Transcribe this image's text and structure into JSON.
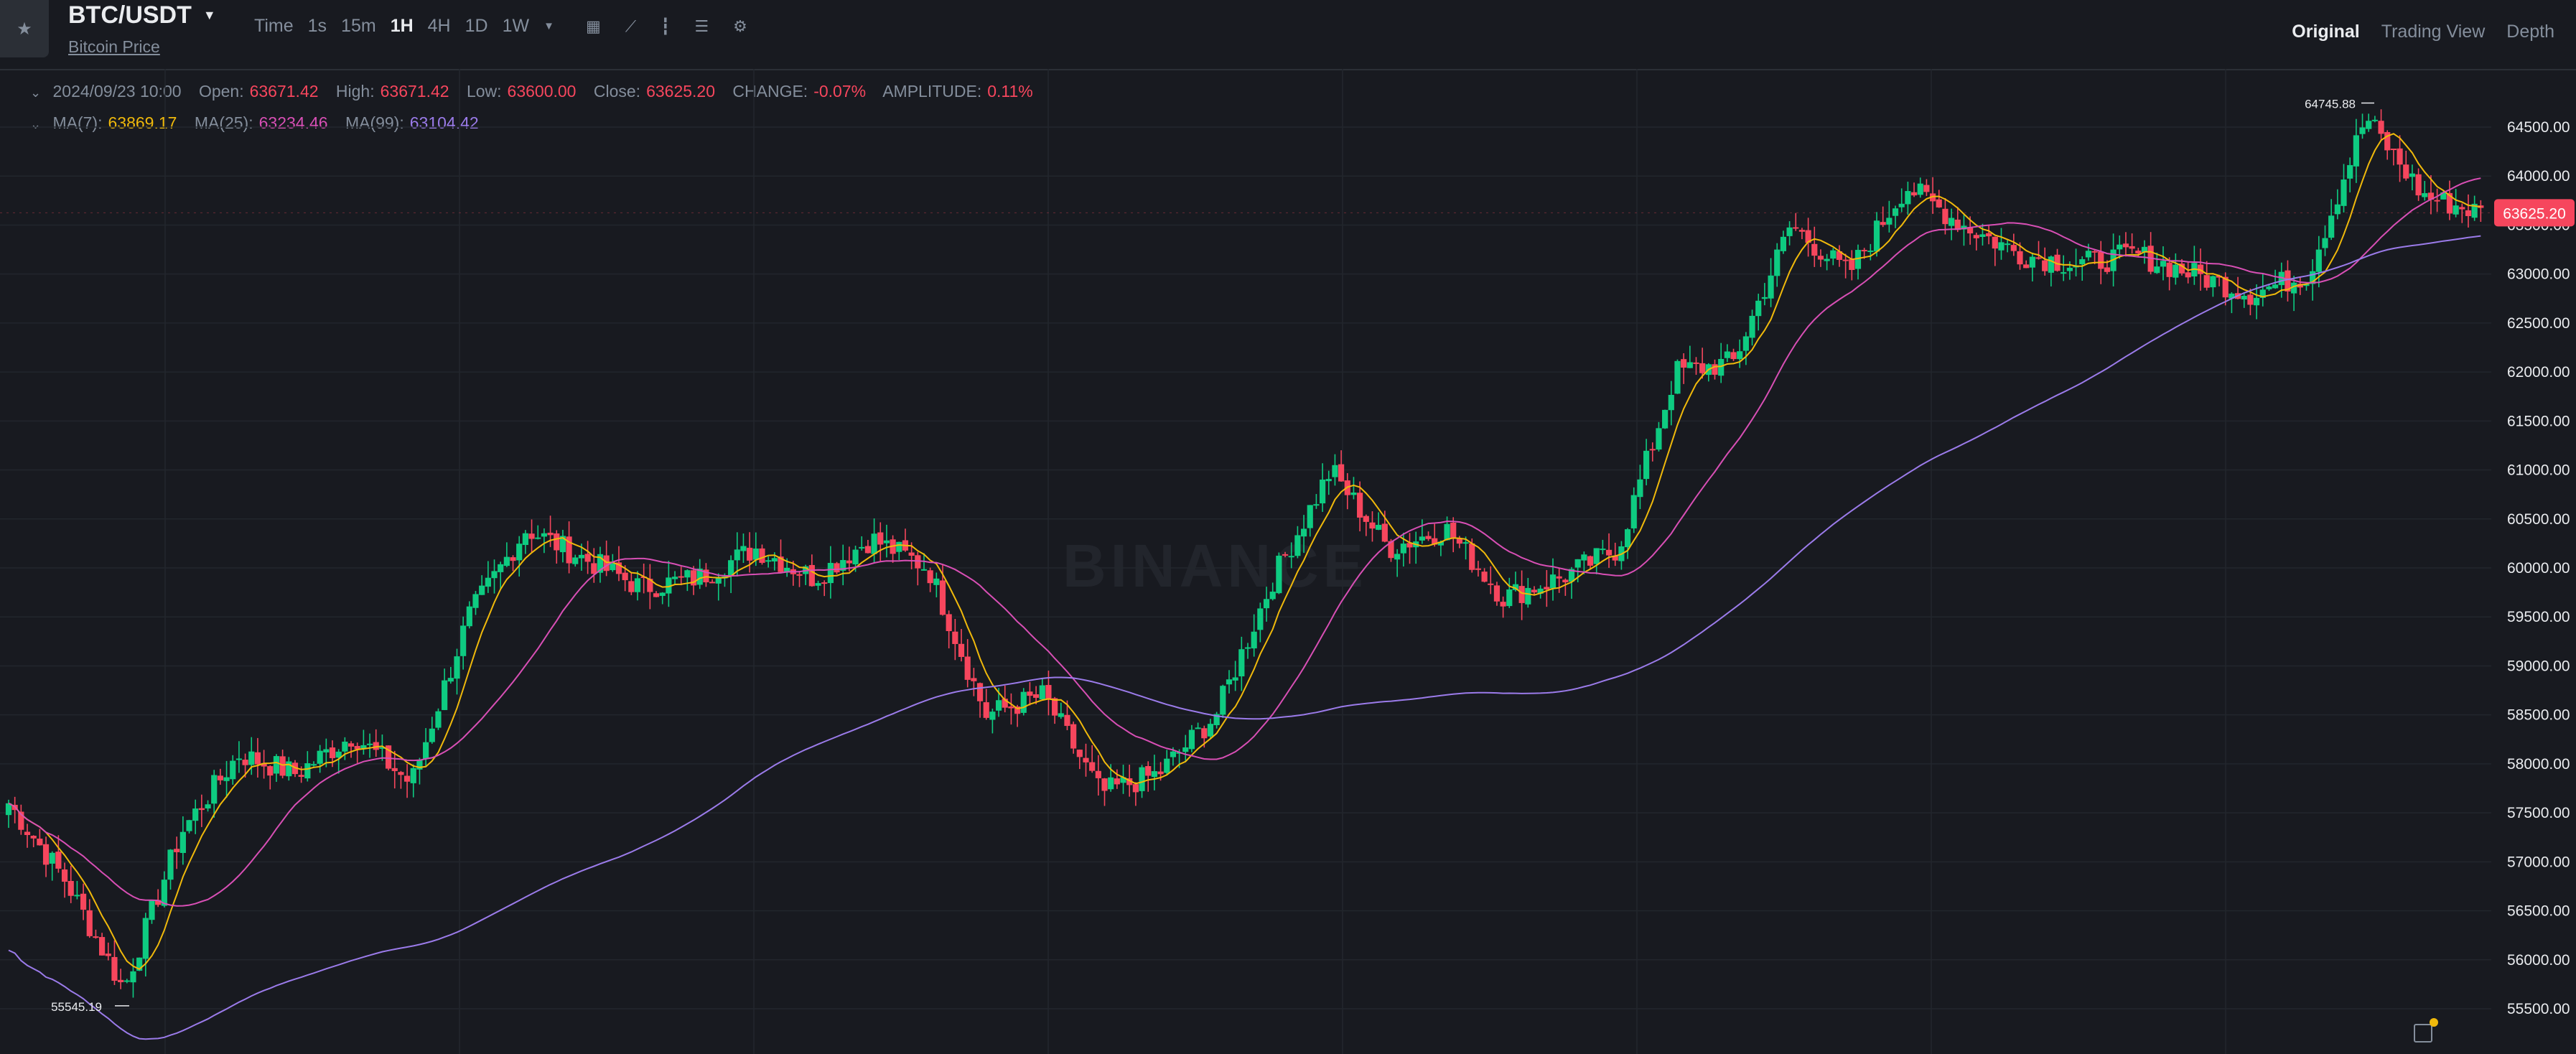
{
  "header": {
    "pair": "BTC/USDT",
    "subtitle": "Bitcoin Price",
    "intervals": [
      "Time",
      "1s",
      "15m",
      "1H",
      "4H",
      "1D",
      "1W"
    ],
    "active_interval": "1H",
    "views": [
      "Original",
      "Trading View",
      "Depth"
    ],
    "active_view": "Original"
  },
  "ohlc": {
    "date": "2024/09/23 10:00",
    "open_label": "Open:",
    "open": "63671.42",
    "high_label": "High:",
    "high": "63671.42",
    "low_label": "Low:",
    "low": "63600.00",
    "close_label": "Close:",
    "close": "63625.20",
    "change_label": "CHANGE:",
    "change": "-0.07%",
    "amplitude_label": "AMPLITUDE:",
    "amplitude": "0.11%"
  },
  "ma": {
    "ma7_label": "MA(7):",
    "ma7": "63869.17",
    "ma25_label": "MA(25):",
    "ma25": "63234.46",
    "ma99_label": "MA(99):",
    "ma99": "63104.42"
  },
  "colors": {
    "up": "#0ecb81",
    "down": "#f6465d",
    "ma7": "#f0b90b",
    "ma25": "#d84fb5",
    "ma99": "#9b7bea",
    "bg": "#181a20",
    "grid": "#22262d"
  },
  "icons": [
    "star-icon",
    "caret-down-icon",
    "calendar-icon",
    "line-icon",
    "candles-icon",
    "indicator-icon",
    "gear-icon"
  ],
  "watermark": "BINANCE",
  "chart_data": {
    "type": "candlestick",
    "ylim": [
      55200,
      65100
    ],
    "y_ticks": [
      "64500.00",
      "64000.00",
      "63500.00",
      "63000.00",
      "62500.00",
      "62000.00",
      "61500.00",
      "61000.00",
      "60500.00",
      "60000.00",
      "59500.00",
      "59000.00",
      "58500.00",
      "58000.00",
      "57500.00",
      "57000.00",
      "56500.00",
      "56000.00",
      "55500.00"
    ],
    "last_price": "63625.20",
    "high_marker": "64745.88",
    "low_marker": "55545.19",
    "ma_series": [
      "MA(7)",
      "MA(25)",
      "MA(99)"
    ],
    "key_closes": [
      57600,
      56800,
      55700,
      57300,
      58100,
      57900,
      58300,
      57800,
      59500,
      60400,
      60100,
      59800,
      59900,
      60200,
      59900,
      60300,
      60000,
      58500,
      58700,
      57700,
      57900,
      58500,
      59900,
      61000,
      60200,
      60400,
      59700,
      59900,
      60200,
      62000,
      62100,
      63500,
      63000,
      63900,
      63500,
      63200,
      63100,
      63200,
      63000,
      62800,
      63000,
      64600,
      63800,
      63625
    ]
  }
}
